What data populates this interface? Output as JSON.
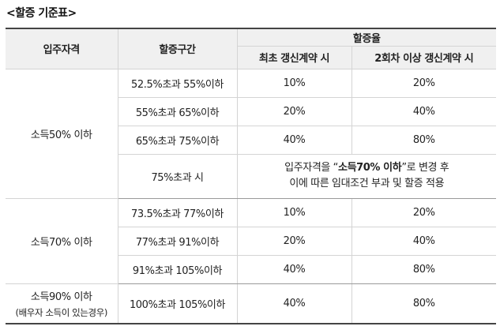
{
  "title": "<할증 기준표>",
  "header": {
    "qualification": "입주자격",
    "section": "할증구간",
    "rate": "할증율",
    "first_renewal": "최초 갱신계약 시",
    "second_renewal": "2회차 이상 갱신계약 시"
  },
  "groups": [
    {
      "qualification": "소득50% 이하",
      "rows": [
        {
          "section": "52.5%초과 55%이하",
          "first": "10%",
          "second": "20%"
        },
        {
          "section": "55%초과 65%이하",
          "first": "20%",
          "second": "40%"
        },
        {
          "section": "65%초과 75%이하",
          "first": "40%",
          "second": "80%"
        }
      ],
      "note_row": {
        "section": "75%초과 시",
        "note_prefix": "입주자격을 “",
        "note_bold": "소득70% 이하",
        "note_suffix": "”로  변경 후",
        "note_line2": "이에 따른 임대조건 부과 및 할증 적용"
      }
    },
    {
      "qualification": "소득70% 이하",
      "rows": [
        {
          "section": "73.5%초과 77%이하",
          "first": "10%",
          "second": "20%"
        },
        {
          "section": "77%초과 91%이하",
          "first": "20%",
          "second": "40%"
        },
        {
          "section": "91%초과 105%이하",
          "first": "40%",
          "second": "80%"
        }
      ]
    },
    {
      "qualification": "소득90% 이하",
      "qualification_sub": "(배우자 소득이 있는경우)",
      "rows": [
        {
          "section": "100%초과 105%이하",
          "first": "40%",
          "second": "80%"
        }
      ]
    }
  ]
}
